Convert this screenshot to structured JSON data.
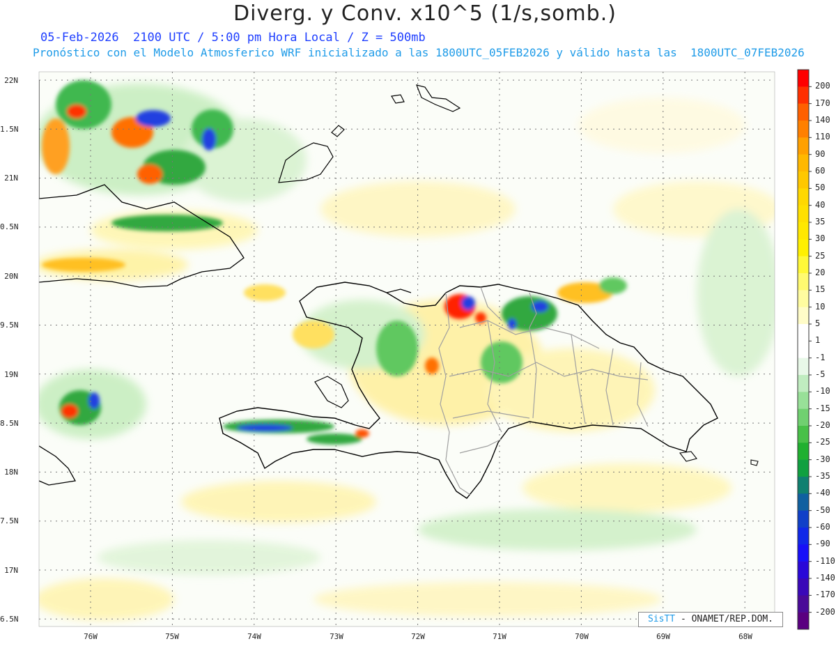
{
  "title": "Diverg. y Conv. x10^5 (1/s,somb.)",
  "subtitle_line1": "05-Feb-2026  2100 UTC / 5:00 pm Hora Local / Z = 500mb",
  "subtitle_line2": "Pronóstico con el Modelo Atmosferico WRF inicializado a las 1800UTC_05FEB2026 y válido hasta las  1800UTC_07FEB2026",
  "lat_labels": [
    "22N",
    "1.5N",
    "21N",
    "0.5N",
    "20N",
    "9.5N",
    "19N",
    "8.5N",
    "18N",
    "7.5N",
    "17N",
    "6.5N"
  ],
  "lon_labels": [
    "76W",
    "75W",
    "74W",
    "73W",
    "72W",
    "71W",
    "70W",
    "69W",
    "68W"
  ],
  "colorbar": {
    "labels": [
      "200",
      "170",
      "140",
      "110",
      "90",
      "60",
      "50",
      "40",
      "35",
      "30",
      "25",
      "20",
      "15",
      "10",
      "5",
      "1",
      "-1",
      "-5",
      "-10",
      "-15",
      "-20",
      "-25",
      "-30",
      "-35",
      "-40",
      "-50",
      "-60",
      "-90",
      "-110",
      "-140",
      "-170",
      "-200"
    ],
    "colors": [
      "#ff0000",
      "#ff3000",
      "#ff6000",
      "#ff8000",
      "#ffa000",
      "#ffb800",
      "#ffc800",
      "#ffd800",
      "#ffe000",
      "#ffe800",
      "#fff000",
      "#fff838",
      "#fffa70",
      "#fffca0",
      "#fffcc8",
      "#ffffff",
      "#ffffff",
      "#e8f8e8",
      "#c0ecc0",
      "#98e098",
      "#70d070",
      "#48c048",
      "#20b030",
      "#10a040",
      "#108070",
      "#1060a0",
      "#1040c8",
      "#1028e8",
      "#1810f8",
      "#2a08d8",
      "#3a08b8",
      "#4a0a98",
      "#5a0080"
    ]
  },
  "credit_brand": "SisTT",
  "credit_text": " - ONAMET/REP.DOM.",
  "colors": {
    "title": "#222222",
    "subtitle1": "#1f3fff",
    "subtitle2": "#1e9be8",
    "coast": "#000000",
    "borders": "#a0a0a0"
  }
}
